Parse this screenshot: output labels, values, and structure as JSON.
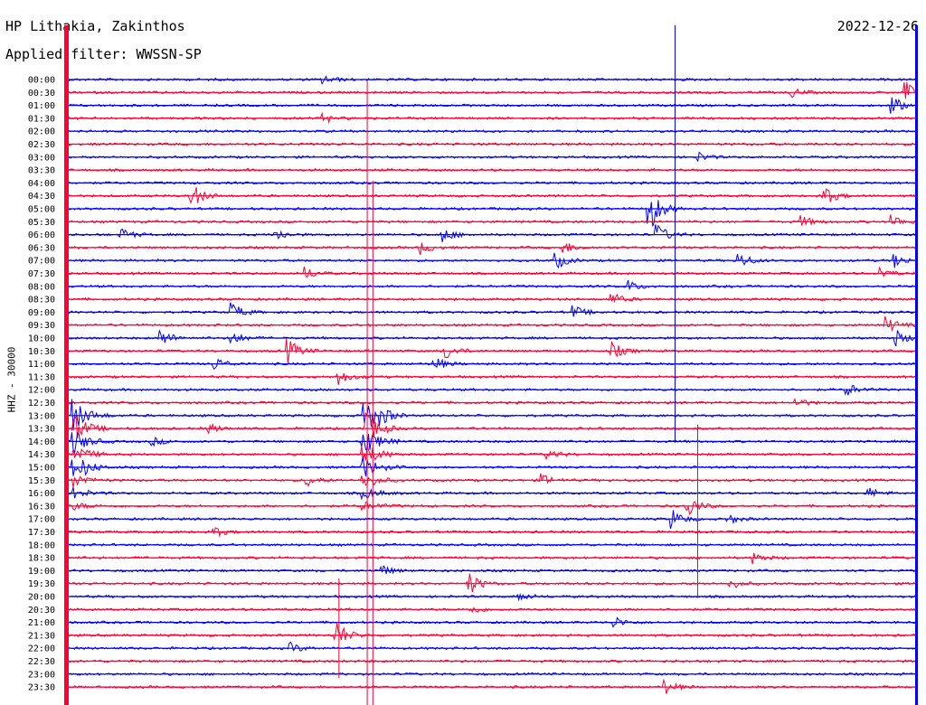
{
  "header": {
    "station": "HP Lithakia, Zakinthos",
    "filter": "Applied filter: WWSSN-SP",
    "date": "2022-12-26"
  },
  "chart_data": {
    "type": "line",
    "title": "HP Lithakia, Zakinthos",
    "subtitle": "Applied filter: WWSSN-SP",
    "ylabel": "HHZ - 30000",
    "xlabel": "",
    "grid": false,
    "trace_colors": [
      "#0000ff",
      "#ff0033"
    ],
    "categories": [
      "00:00",
      "00:30",
      "01:00",
      "01:30",
      "02:00",
      "02:30",
      "03:00",
      "03:30",
      "04:00",
      "04:30",
      "05:00",
      "05:30",
      "06:00",
      "06:30",
      "07:00",
      "07:30",
      "08:00",
      "08:30",
      "09:00",
      "09:30",
      "10:00",
      "10:30",
      "11:00",
      "11:30",
      "12:00",
      "12:30",
      "13:00",
      "13:30",
      "14:00",
      "14:30",
      "15:00",
      "15:30",
      "16:00",
      "16:30",
      "17:00",
      "17:30",
      "18:00",
      "18:30",
      "19:00",
      "19:30",
      "20:00",
      "20:30",
      "21:00",
      "21:30",
      "22:00",
      "22:30",
      "23:00",
      "23:30"
    ],
    "x_range_minutes": [
      0,
      30
    ],
    "events": [
      {
        "row": 0,
        "minute": 9.1,
        "amp": 0.5
      },
      {
        "row": 1,
        "minute": 25.6,
        "amp": 0.6
      },
      {
        "row": 1,
        "minute": 29.7,
        "amp": 1.5
      },
      {
        "row": 2,
        "minute": 29.2,
        "amp": 1.1
      },
      {
        "row": 3,
        "minute": 9.1,
        "amp": 0.5
      },
      {
        "row": 6,
        "minute": 22.3,
        "amp": 0.6
      },
      {
        "row": 9,
        "minute": 4.4,
        "amp": 1.5
      },
      {
        "row": 9,
        "minute": 26.8,
        "amp": 1.2
      },
      {
        "row": 10,
        "minute": 20.6,
        "amp": 3.0
      },
      {
        "row": 11,
        "minute": 26.0,
        "amp": 0.7
      },
      {
        "row": 11,
        "minute": 29.2,
        "amp": 0.8
      },
      {
        "row": 12,
        "minute": 1.9,
        "amp": 0.8
      },
      {
        "row": 12,
        "minute": 7.4,
        "amp": 0.7
      },
      {
        "row": 12,
        "minute": 13.3,
        "amp": 0.9
      },
      {
        "row": 12,
        "minute": 20.9,
        "amp": 1.2
      },
      {
        "row": 13,
        "minute": 12.5,
        "amp": 0.8
      },
      {
        "row": 13,
        "minute": 17.6,
        "amp": 0.7
      },
      {
        "row": 14,
        "minute": 17.3,
        "amp": 1.0
      },
      {
        "row": 14,
        "minute": 23.8,
        "amp": 0.9
      },
      {
        "row": 14,
        "minute": 29.3,
        "amp": 0.8
      },
      {
        "row": 15,
        "minute": 8.4,
        "amp": 0.8
      },
      {
        "row": 15,
        "minute": 28.8,
        "amp": 0.7
      },
      {
        "row": 16,
        "minute": 19.8,
        "amp": 0.8
      },
      {
        "row": 17,
        "minute": 19.3,
        "amp": 0.7
      },
      {
        "row": 18,
        "minute": 5.8,
        "amp": 1.2
      },
      {
        "row": 18,
        "minute": 17.9,
        "amp": 0.8
      },
      {
        "row": 19,
        "minute": 29.0,
        "amp": 1.0
      },
      {
        "row": 20,
        "minute": 3.3,
        "amp": 1.1
      },
      {
        "row": 20,
        "minute": 5.8,
        "amp": 0.9
      },
      {
        "row": 20,
        "minute": 29.3,
        "amp": 1.0
      },
      {
        "row": 21,
        "minute": 7.8,
        "amp": 1.5
      },
      {
        "row": 21,
        "minute": 13.4,
        "amp": 1.0
      },
      {
        "row": 21,
        "minute": 19.3,
        "amp": 1.0
      },
      {
        "row": 22,
        "minute": 5.2,
        "amp": 0.8
      },
      {
        "row": 22,
        "minute": 13.0,
        "amp": 0.8
      },
      {
        "row": 23,
        "minute": 9.6,
        "amp": 0.9
      },
      {
        "row": 24,
        "minute": 27.6,
        "amp": 0.8
      },
      {
        "row": 25,
        "minute": 25.8,
        "amp": 0.6
      },
      {
        "row": 26,
        "minute": 11.1,
        "amp": 0.6
      },
      {
        "row": 27,
        "minute": 5.0,
        "amp": 0.6
      },
      {
        "row": 28,
        "minute": 3.0,
        "amp": 0.5
      },
      {
        "row": 29,
        "minute": 17.0,
        "amp": 0.6
      },
      {
        "row": 30,
        "minute": 0.6,
        "amp": 0.5
      },
      {
        "row": 31,
        "minute": 8.5,
        "amp": 0.7
      },
      {
        "row": 31,
        "minute": 16.8,
        "amp": 0.7
      },
      {
        "row": 32,
        "minute": 28.4,
        "amp": 0.6
      },
      {
        "row": 33,
        "minute": 21.9,
        "amp": 1.6
      },
      {
        "row": 34,
        "minute": 21.4,
        "amp": 1.2
      },
      {
        "row": 34,
        "minute": 23.4,
        "amp": 0.6
      },
      {
        "row": 35,
        "minute": 5.2,
        "amp": 0.6
      },
      {
        "row": 37,
        "minute": 24.3,
        "amp": 0.7
      },
      {
        "row": 38,
        "minute": 11.1,
        "amp": 0.7
      },
      {
        "row": 39,
        "minute": 14.2,
        "amp": 1.4
      },
      {
        "row": 39,
        "minute": 23.5,
        "amp": 0.6
      },
      {
        "row": 40,
        "minute": 16.0,
        "amp": 0.5
      },
      {
        "row": 41,
        "minute": 14.3,
        "amp": 0.5
      },
      {
        "row": 42,
        "minute": 19.4,
        "amp": 0.6
      },
      {
        "row": 43,
        "minute": 9.5,
        "amp": 1.8
      },
      {
        "row": 44,
        "minute": 7.9,
        "amp": 0.6
      },
      {
        "row": 47,
        "minute": 21.1,
        "amp": 1.0
      }
    ],
    "long_events": [
      {
        "start_row": 26,
        "start_minute": 0.2,
        "end_row": 33,
        "end_minute": 0.5,
        "amp": 2.2
      },
      {
        "start_row": 26,
        "start_minute": 10.5,
        "end_row": 33,
        "end_minute": 10.9,
        "amp": 2.5
      }
    ]
  }
}
